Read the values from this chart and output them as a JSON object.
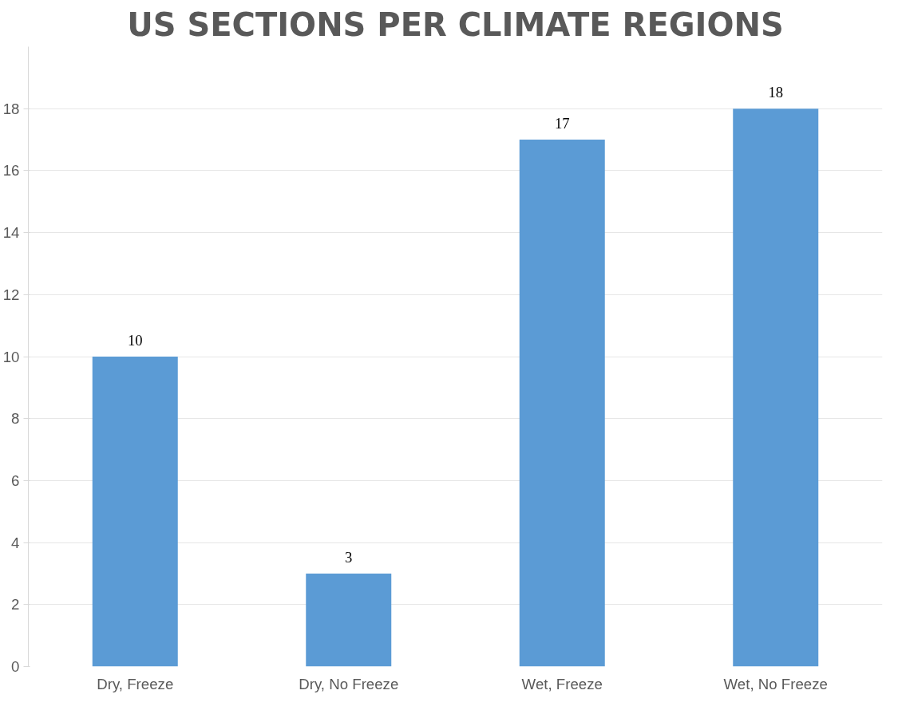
{
  "chart_data": {
    "type": "bar",
    "title": "US SECTIONS PER CLIMATE REGIONS",
    "categories": [
      "Dry, Freeze",
      "Dry, No Freeze",
      "Wet, Freeze",
      "Wet, No Freeze"
    ],
    "values": [
      10,
      3,
      17,
      18
    ],
    "color": "#5b9bd5",
    "ylim": [
      0,
      20
    ],
    "yticks": [
      0,
      2,
      4,
      6,
      8,
      10,
      12,
      14,
      16,
      18
    ],
    "grid": "y",
    "data_labels": true
  }
}
